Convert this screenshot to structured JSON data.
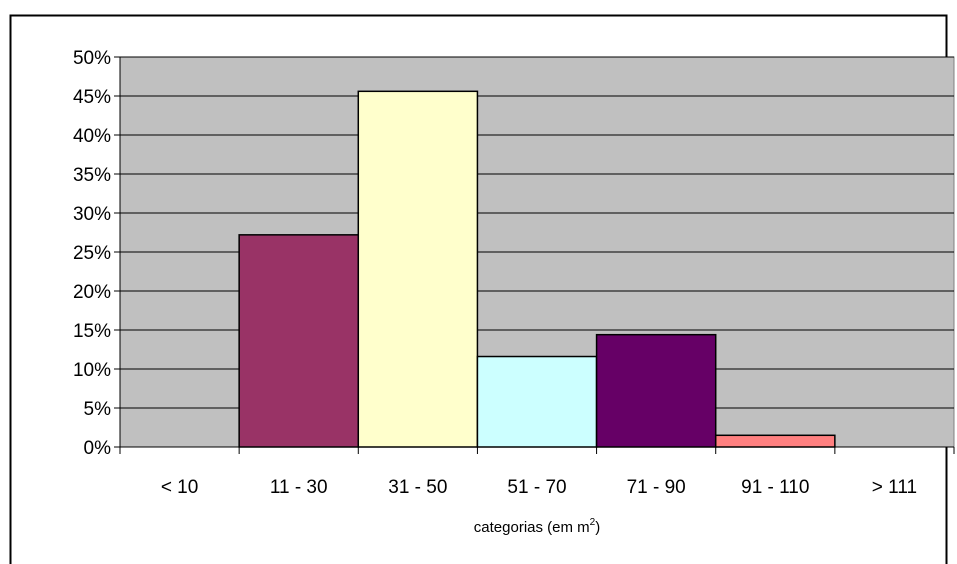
{
  "chart_data": {
    "type": "bar",
    "categories": [
      "< 10",
      "11 - 30",
      "31 - 50",
      "51 - 70",
      "71 - 90",
      "91 - 110",
      "> 111"
    ],
    "values": [
      0,
      27.2,
      45.6,
      11.6,
      14.4,
      1.5,
      0
    ],
    "value_unit": "%",
    "y_tick_labels": [
      "0%",
      "5%",
      "10%",
      "15%",
      "20%",
      "25%",
      "30%",
      "35%",
      "40%",
      "45%",
      "50%"
    ],
    "ylim": [
      0,
      50
    ],
    "xlabel": {
      "prefix": "categorias (em m",
      "superscript": "2",
      "suffix": ")"
    },
    "grid": true,
    "legend": "none",
    "bar_colors": [
      "#993366",
      "#993366",
      "#FFFFCC",
      "#CCFFFF",
      "#660066",
      "#FF8080",
      "#FF8080"
    ],
    "plot_background": "#C0C0C0"
  }
}
